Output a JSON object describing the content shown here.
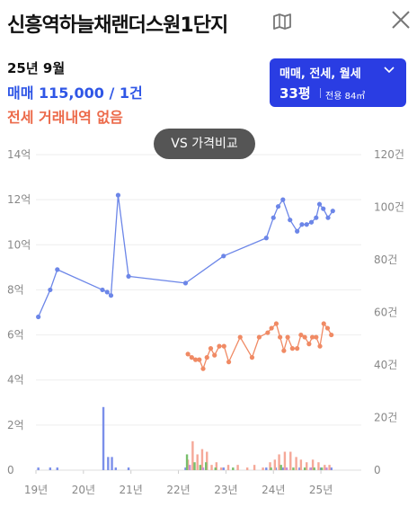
{
  "header": {
    "title": "신흥역하늘채랜더스원1단지",
    "map_icon": "map-icon",
    "close_icon": "close-icon"
  },
  "info": {
    "period": "25년 9월",
    "trade_line": "매매 115,000 / 1건",
    "lease_line": "전세 거래내역 없음"
  },
  "filter": {
    "type_label": "매매, 전세, 월세",
    "pyeong": "33평",
    "area_label": "전용 84㎡",
    "bg_color": "#2a3de3"
  },
  "compare_button": {
    "label": "VS 가격비교"
  },
  "chart_data": {
    "type": "line",
    "x_ticks": [
      "19년",
      "20년",
      "21년",
      "22년",
      "23년",
      "24년",
      "25년"
    ],
    "x_range": [
      2019.0,
      2025.85
    ],
    "y_left": {
      "ticks": [
        "0",
        "2억",
        "4억",
        "6억",
        "8억",
        "10억",
        "12억",
        "14억"
      ],
      "range_eok": [
        0,
        14
      ]
    },
    "y_right": {
      "ticks": [
        "0",
        "20건",
        "40건",
        "60건",
        "80건",
        "100건",
        "120건"
      ],
      "range": [
        0,
        120
      ]
    },
    "grid": true,
    "series": [
      {
        "color": "#6c86e8",
        "points": [
          [
            2019.05,
            6.8
          ],
          [
            2019.3,
            8.0
          ],
          [
            2019.45,
            8.9
          ],
          [
            2020.4,
            8.0
          ],
          [
            2020.5,
            7.9
          ],
          [
            2020.58,
            7.75
          ],
          [
            2020.73,
            12.2
          ],
          [
            2020.95,
            8.6
          ],
          [
            2022.15,
            8.3
          ],
          [
            2022.95,
            9.5
          ],
          [
            2023.85,
            10.3
          ],
          [
            2024.0,
            11.2
          ],
          [
            2024.1,
            11.7
          ],
          [
            2024.2,
            12.0
          ],
          [
            2024.35,
            11.1
          ],
          [
            2024.5,
            10.6
          ],
          [
            2024.6,
            10.9
          ],
          [
            2024.7,
            10.9
          ],
          [
            2024.8,
            11.0
          ],
          [
            2024.9,
            11.2
          ],
          [
            2024.97,
            11.8
          ],
          [
            2025.05,
            11.6
          ],
          [
            2025.15,
            11.2
          ],
          [
            2025.25,
            11.5
          ]
        ]
      },
      {
        "color": "#f08a64",
        "points": [
          [
            2022.2,
            5.15
          ],
          [
            2022.28,
            5.0
          ],
          [
            2022.36,
            4.9
          ],
          [
            2022.44,
            4.9
          ],
          [
            2022.52,
            4.5
          ],
          [
            2022.6,
            5.0
          ],
          [
            2022.68,
            5.4
          ],
          [
            2022.76,
            5.1
          ],
          [
            2022.86,
            5.5
          ],
          [
            2022.96,
            5.5
          ],
          [
            2023.06,
            4.8
          ],
          [
            2023.3,
            5.9
          ],
          [
            2023.55,
            5.0
          ],
          [
            2023.7,
            5.9
          ],
          [
            2023.88,
            6.1
          ],
          [
            2023.96,
            6.3
          ],
          [
            2024.06,
            6.5
          ],
          [
            2024.14,
            5.9
          ],
          [
            2024.22,
            5.3
          ],
          [
            2024.3,
            5.9
          ],
          [
            2024.4,
            5.4
          ],
          [
            2024.5,
            5.4
          ],
          [
            2024.58,
            6.0
          ],
          [
            2024.66,
            5.9
          ],
          [
            2024.75,
            5.6
          ],
          [
            2024.82,
            5.9
          ],
          [
            2024.9,
            5.9
          ],
          [
            2024.98,
            5.5
          ],
          [
            2025.06,
            6.5
          ],
          [
            2025.14,
            6.3
          ],
          [
            2025.22,
            6.0
          ]
        ]
      }
    ],
    "volume_bars": [
      {
        "color": "#7b8fea",
        "bars": [
          [
            2019.05,
            1
          ],
          [
            2019.3,
            1
          ],
          [
            2019.45,
            1
          ],
          [
            2020.42,
            24
          ],
          [
            2020.52,
            5
          ],
          [
            2020.6,
            5
          ],
          [
            2020.68,
            1
          ],
          [
            2020.95,
            1
          ],
          [
            2022.15,
            1
          ],
          [
            2022.95,
            1
          ],
          [
            2023.85,
            1
          ],
          [
            2024.05,
            1
          ],
          [
            2024.2,
            1
          ],
          [
            2024.55,
            1
          ],
          [
            2024.8,
            1
          ],
          [
            2025.0,
            1
          ],
          [
            2025.22,
            1
          ]
        ]
      },
      {
        "color": "#f5a898",
        "bars": [
          [
            2022.2,
            4
          ],
          [
            2022.3,
            11
          ],
          [
            2022.4,
            6
          ],
          [
            2022.5,
            8
          ],
          [
            2022.6,
            7
          ],
          [
            2022.7,
            2
          ],
          [
            2022.8,
            3
          ],
          [
            2022.9,
            1
          ],
          [
            2023.05,
            2
          ],
          [
            2023.25,
            2
          ],
          [
            2023.45,
            1
          ],
          [
            2023.6,
            2
          ],
          [
            2023.78,
            1
          ],
          [
            2023.93,
            3
          ],
          [
            2024.03,
            4
          ],
          [
            2024.12,
            6
          ],
          [
            2024.24,
            7
          ],
          [
            2024.36,
            7
          ],
          [
            2024.48,
            5
          ],
          [
            2024.58,
            4
          ],
          [
            2024.7,
            3
          ],
          [
            2024.83,
            4
          ],
          [
            2024.95,
            3
          ],
          [
            2025.08,
            2
          ],
          [
            2025.18,
            2
          ]
        ]
      },
      {
        "color": "#79bf6c",
        "bars": [
          [
            2022.18,
            6
          ],
          [
            2022.34,
            3
          ],
          [
            2022.46,
            2
          ],
          [
            2022.58,
            3
          ],
          [
            2022.78,
            1
          ],
          [
            2023.15,
            1
          ],
          [
            2023.95,
            1
          ],
          [
            2024.16,
            2
          ],
          [
            2024.42,
            1
          ],
          [
            2024.66,
            1
          ],
          [
            2024.86,
            1
          ],
          [
            2025.02,
            1
          ]
        ]
      },
      {
        "color": "#c78ed8",
        "bars": [
          [
            2022.24,
            2
          ],
          [
            2022.52,
            1
          ],
          [
            2024.28,
            1
          ],
          [
            2024.78,
            1
          ],
          [
            2025.12,
            1
          ]
        ]
      }
    ]
  }
}
